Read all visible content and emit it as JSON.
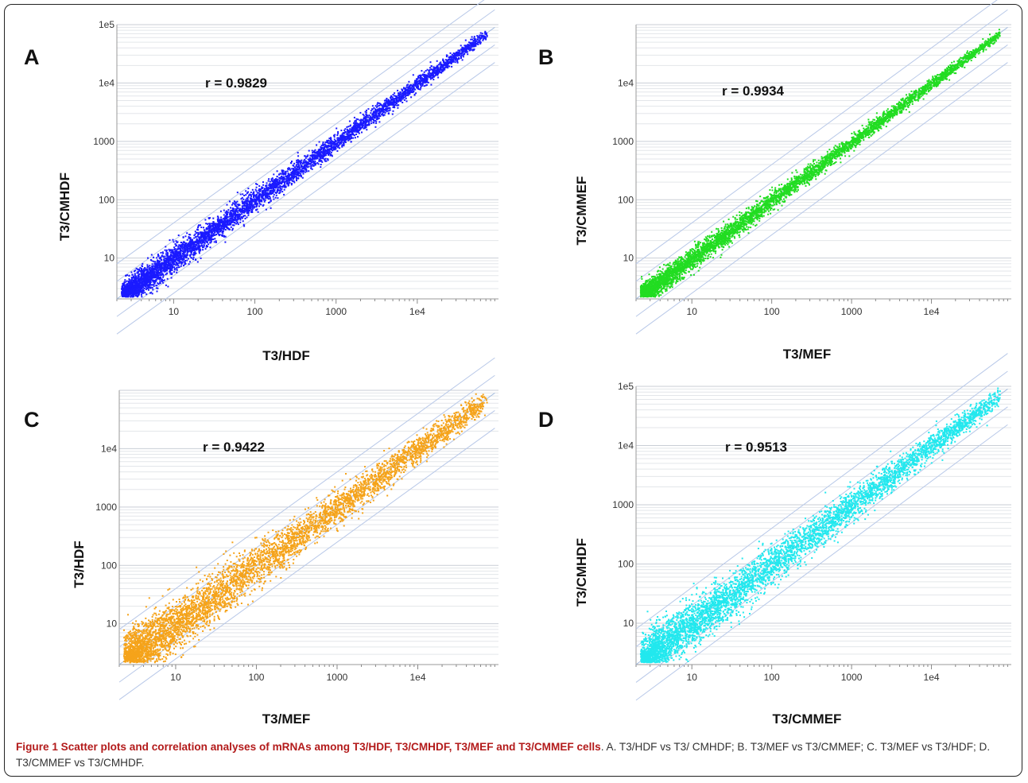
{
  "figure": {
    "caption_title": "Figure 1 Scatter plots and correlation analyses of mRNAs among T3/HDF, T3/CMHDF, T3/MEF and T3/CMMEF cells",
    "caption_text": ". A. T3/HDF vs T3/ CMHDF; B. T3/MEF vs T3/CMMEF; C. T3/MEF vs T3/HDF; D. T3/CMMEF vs T3/CMHDF."
  },
  "chart_data": [
    {
      "panel": "A",
      "type": "scatter",
      "scale": "log",
      "xlabel": "T3/HDF",
      "ylabel": "T3/CMHDF",
      "annotation": "r = 0.9829",
      "correlation": 0.9829,
      "color": "#1a1aff",
      "xlim": [
        2,
        100000
      ],
      "ylim": [
        2,
        100000
      ],
      "x_ticks": [
        "10",
        "100",
        "1000",
        "1e4"
      ],
      "y_ticks": [
        "10",
        "100",
        "1000",
        "1e4",
        "1e5"
      ],
      "grid": "horizontal",
      "reference_lines": "diagonal fold-change lines"
    },
    {
      "panel": "B",
      "type": "scatter",
      "scale": "log",
      "xlabel": "T3/MEF",
      "ylabel": "T3/CMMEF",
      "annotation": "r = 0.9934",
      "correlation": 0.9934,
      "color": "#22dd22",
      "xlim": [
        2,
        100000
      ],
      "ylim": [
        2,
        100000
      ],
      "x_ticks": [
        "10",
        "100",
        "1000",
        "1e4"
      ],
      "y_ticks": [
        "10",
        "100",
        "1000",
        "1e4"
      ],
      "grid": "horizontal",
      "reference_lines": "diagonal fold-change lines"
    },
    {
      "panel": "C",
      "type": "scatter",
      "scale": "log",
      "xlabel": "T3/MEF",
      "ylabel": "T3/HDF",
      "annotation": "r = 0.9422",
      "correlation": 0.9422,
      "color": "#f5a31a",
      "xlim": [
        2,
        100000
      ],
      "ylim": [
        2,
        100000
      ],
      "x_ticks": [
        "10",
        "100",
        "1000",
        "1e4"
      ],
      "y_ticks": [
        "10",
        "100",
        "1000",
        "1e4"
      ],
      "grid": "horizontal",
      "reference_lines": "diagonal fold-change lines"
    },
    {
      "panel": "D",
      "type": "scatter",
      "scale": "log",
      "xlabel": "T3/CMMEF",
      "ylabel": "T3/CMHDF",
      "annotation": "r = 0.9513",
      "correlation": 0.9513,
      "color": "#22e8ee",
      "xlim": [
        2,
        100000
      ],
      "ylim": [
        2,
        100000
      ],
      "x_ticks": [
        "10",
        "100",
        "1000",
        "1e4"
      ],
      "y_ticks": [
        "10",
        "100",
        "1000",
        "1e4",
        "1e5"
      ],
      "grid": "horizontal",
      "reference_lines": "diagonal fold-change lines"
    }
  ]
}
